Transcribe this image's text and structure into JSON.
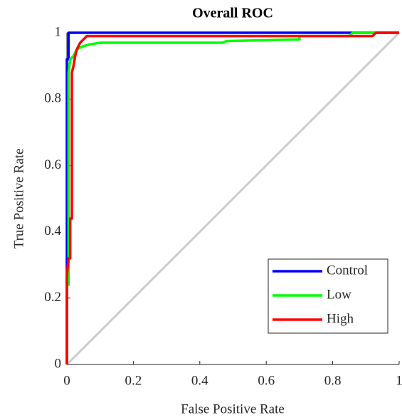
{
  "chart_data": {
    "type": "line",
    "title": "Overall ROC",
    "x_label": "False Positive Rate",
    "y_label": "True Positive Rate",
    "xlim": [
      0,
      1
    ],
    "ylim": [
      0,
      1
    ],
    "xticks": [
      0,
      0.2,
      0.4,
      0.6,
      0.8,
      1
    ],
    "yticks": [
      0,
      0.2,
      0.4,
      0.6,
      0.8,
      1
    ],
    "grid": false,
    "legend": "lower right",
    "series": [
      {
        "name": "Control",
        "color": "#0000ff",
        "x": [
          0,
          0,
          0.005,
          0.005,
          1
        ],
        "values": [
          0,
          0.92,
          0.92,
          1,
          1
        ]
      },
      {
        "name": "Low",
        "color": "#00ff00",
        "x": [
          0,
          0,
          0.005,
          0.005,
          0.005,
          0.01,
          0.02,
          0.03,
          0.05,
          0.07,
          0.1,
          0.47,
          0.48,
          0.7,
          0.7,
          0.85,
          0.86,
          1
        ],
        "values": [
          0,
          0.24,
          0.24,
          0.45,
          0.88,
          0.92,
          0.93,
          0.95,
          0.96,
          0.965,
          0.97,
          0.97,
          0.975,
          0.98,
          0.99,
          0.99,
          1,
          1
        ]
      },
      {
        "name": "High",
        "color": "#ff0000",
        "x": [
          0,
          0,
          0.005,
          0.01,
          0.01,
          0.015,
          0.015,
          0.02,
          0.025,
          0.03,
          0.04,
          0.05,
          0.06,
          0.92,
          0.93,
          1
        ],
        "values": [
          0,
          0.27,
          0.32,
          0.32,
          0.44,
          0.44,
          0.88,
          0.9,
          0.93,
          0.95,
          0.97,
          0.98,
          0.99,
          0.99,
          1,
          1
        ]
      }
    ]
  }
}
